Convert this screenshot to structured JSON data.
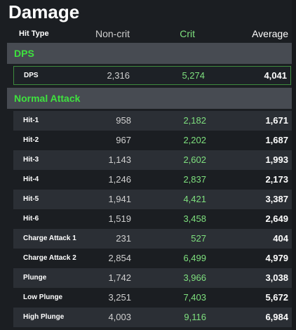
{
  "title": "Damage",
  "columns": {
    "hit_type": "Hit Type",
    "non_crit": "Non-crit",
    "crit": "Crit",
    "average": "Average"
  },
  "sections": [
    {
      "name": "DPS",
      "rows": [
        {
          "label": "DPS",
          "non_crit": "2,316",
          "crit": "5,274",
          "average": "4,041"
        }
      ]
    },
    {
      "name": "Normal Attack",
      "rows": [
        {
          "label": "Hit-1",
          "non_crit": "958",
          "crit": "2,182",
          "average": "1,671"
        },
        {
          "label": "Hit-2",
          "non_crit": "967",
          "crit": "2,202",
          "average": "1,687"
        },
        {
          "label": "Hit-3",
          "non_crit": "1,143",
          "crit": "2,602",
          "average": "1,993"
        },
        {
          "label": "Hit-4",
          "non_crit": "1,246",
          "crit": "2,837",
          "average": "2,173"
        },
        {
          "label": "Hit-5",
          "non_crit": "1,941",
          "crit": "4,421",
          "average": "3,387"
        },
        {
          "label": "Hit-6",
          "non_crit": "1,519",
          "crit": "3,458",
          "average": "2,649"
        },
        {
          "label": "Charge Attack 1",
          "non_crit": "231",
          "crit": "527",
          "average": "404"
        },
        {
          "label": "Charge Attack 2",
          "non_crit": "2,854",
          "crit": "6,499",
          "average": "4,979"
        },
        {
          "label": "Plunge",
          "non_crit": "1,742",
          "crit": "3,966",
          "average": "3,038"
        },
        {
          "label": "Low Plunge",
          "non_crit": "3,251",
          "crit": "7,403",
          "average": "5,672"
        },
        {
          "label": "High Plunge",
          "non_crit": "4,003",
          "crit": "9,116",
          "average": "6,984"
        }
      ]
    }
  ],
  "colors": {
    "background": "#1b1e22",
    "section_bg": "#474b52",
    "section_text": "#3ee23e",
    "crit_text": "#7ee07e",
    "highlight_border": "#3e8a3e"
  }
}
